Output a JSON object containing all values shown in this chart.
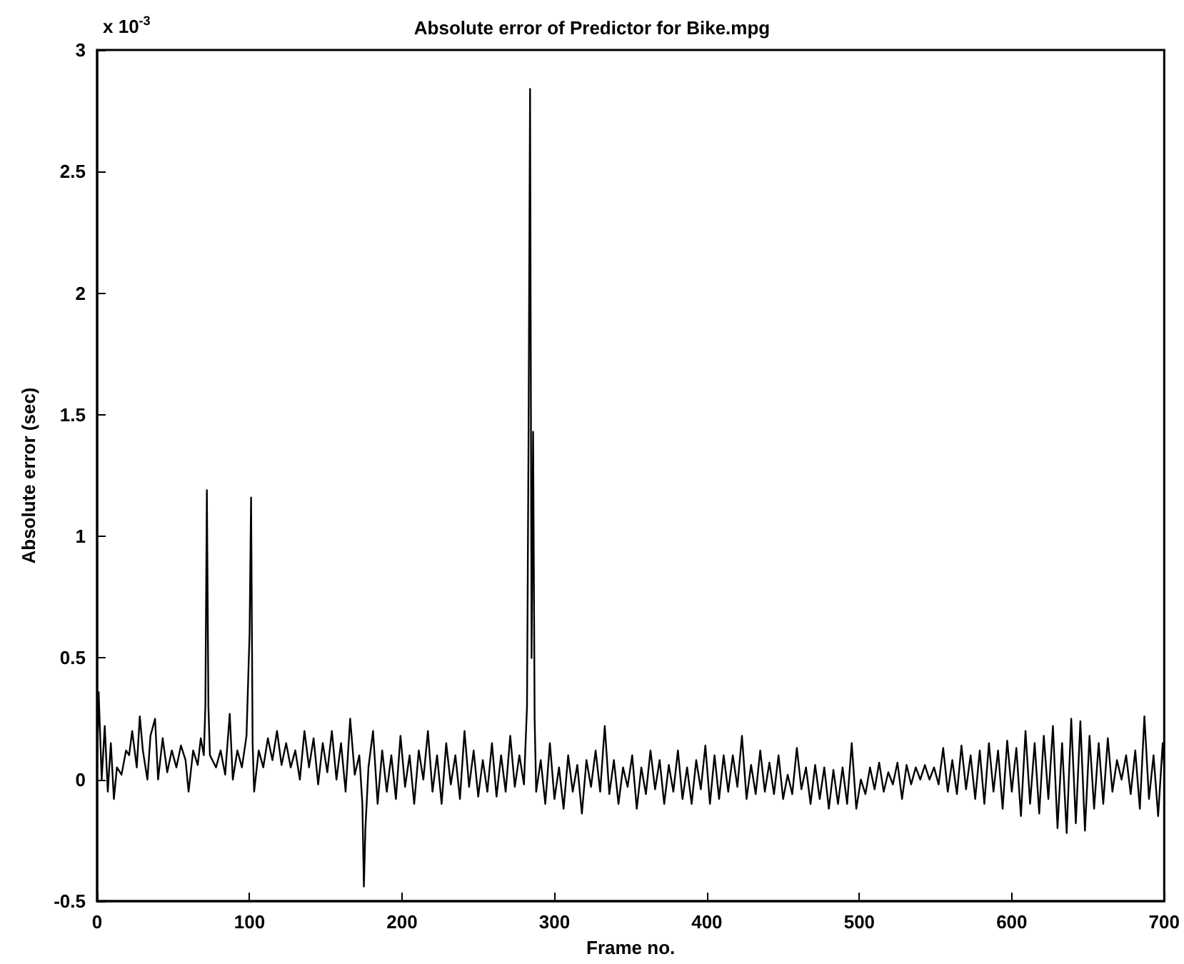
{
  "chart_data": {
    "type": "line",
    "title": "Absolute error of Predictor for Bike.mpg",
    "xlabel": "Frame no.",
    "ylabel": "Absolute error (sec)",
    "annotations": [
      "x 10$^{-3}$"
    ],
    "xlim": [
      0,
      700
    ],
    "xticks": [
      0,
      100,
      200,
      300,
      400,
      500,
      600,
      700
    ],
    "ylim": [
      -0.5,
      3
    ],
    "yticks": [
      -0.5,
      0,
      0.5,
      1,
      1.5,
      2,
      2.5,
      3
    ],
    "marker": "none",
    "line_style": "solid",
    "x": [
      0,
      1,
      3,
      5,
      7,
      9,
      11,
      13,
      16,
      19,
      21,
      23,
      26,
      28,
      30,
      33,
      35,
      38,
      40,
      43,
      46,
      49,
      52,
      55,
      58,
      60,
      63,
      66,
      68,
      70,
      71,
      72,
      73,
      74,
      78,
      81,
      84,
      87,
      89,
      92,
      95,
      98,
      100,
      101,
      102,
      103,
      106,
      109,
      112,
      115,
      118,
      121,
      124,
      127,
      130,
      133,
      136,
      139,
      142,
      145,
      148,
      151,
      154,
      157,
      160,
      163,
      166,
      169,
      172,
      174,
      175,
      176,
      178,
      181,
      184,
      187,
      190,
      193,
      196,
      199,
      202,
      205,
      208,
      211,
      214,
      217,
      220,
      223,
      226,
      229,
      232,
      235,
      238,
      241,
      244,
      247,
      250,
      253,
      256,
      259,
      262,
      265,
      268,
      271,
      274,
      277,
      280,
      282,
      283,
      284,
      285,
      286,
      287,
      288,
      291,
      294,
      297,
      300,
      303,
      306,
      309,
      312,
      315,
      318,
      321,
      324,
      327,
      330,
      333,
      336,
      339,
      342,
      345,
      348,
      351,
      354,
      357,
      360,
      363,
      366,
      369,
      372,
      375,
      378,
      381,
      384,
      387,
      390,
      393,
      396,
      399,
      402,
      405,
      408,
      411,
      414,
      417,
      420,
      423,
      426,
      429,
      432,
      435,
      438,
      441,
      444,
      447,
      450,
      453,
      456,
      459,
      462,
      465,
      468,
      471,
      474,
      477,
      480,
      483,
      486,
      489,
      492,
      495,
      498,
      501,
      504,
      507,
      510,
      513,
      516,
      519,
      522,
      525,
      528,
      531,
      534,
      537,
      540,
      543,
      546,
      549,
      552,
      555,
      558,
      561,
      564,
      567,
      570,
      573,
      576,
      579,
      582,
      585,
      588,
      591,
      594,
      597,
      600,
      603,
      606,
      609,
      612,
      615,
      618,
      621,
      624,
      627,
      630,
      633,
      636,
      639,
      642,
      645,
      648,
      651,
      654,
      657,
      660,
      663,
      666,
      669,
      672,
      675,
      678,
      681,
      684,
      687,
      690,
      693,
      696,
      699,
      700
    ],
    "series": [
      {
        "color": "#000000",
        "values": [
          0.05,
          0.36,
          0.0,
          0.22,
          -0.05,
          0.15,
          -0.08,
          0.05,
          0.02,
          0.12,
          0.1,
          0.2,
          0.05,
          0.26,
          0.12,
          0.0,
          0.18,
          0.25,
          0.0,
          0.17,
          0.03,
          0.12,
          0.05,
          0.14,
          0.08,
          -0.05,
          0.12,
          0.06,
          0.17,
          0.1,
          0.3,
          1.19,
          0.3,
          0.1,
          0.05,
          0.12,
          0.02,
          0.27,
          0.0,
          0.12,
          0.05,
          0.18,
          0.6,
          1.16,
          0.15,
          -0.05,
          0.12,
          0.05,
          0.17,
          0.08,
          0.2,
          0.06,
          0.15,
          0.05,
          0.12,
          0.0,
          0.2,
          0.05,
          0.17,
          -0.02,
          0.15,
          0.03,
          0.2,
          0.0,
          0.15,
          -0.05,
          0.25,
          0.02,
          0.1,
          -0.1,
          -0.44,
          -0.2,
          0.05,
          0.2,
          -0.1,
          0.12,
          -0.05,
          0.1,
          -0.08,
          0.18,
          -0.03,
          0.1,
          -0.1,
          0.12,
          0.0,
          0.2,
          -0.05,
          0.1,
          -0.1,
          0.15,
          -0.02,
          0.1,
          -0.08,
          0.2,
          -0.03,
          0.12,
          -0.07,
          0.08,
          -0.05,
          0.15,
          -0.07,
          0.1,
          -0.05,
          0.18,
          -0.03,
          0.1,
          -0.02,
          0.3,
          1.4,
          2.84,
          0.5,
          1.43,
          0.25,
          -0.05,
          0.08,
          -0.1,
          0.15,
          -0.08,
          0.05,
          -0.12,
          0.1,
          -0.05,
          0.06,
          -0.14,
          0.08,
          -0.03,
          0.12,
          -0.05,
          0.22,
          -0.06,
          0.08,
          -0.1,
          0.05,
          -0.03,
          0.1,
          -0.12,
          0.05,
          -0.06,
          0.12,
          -0.04,
          0.08,
          -0.1,
          0.06,
          -0.05,
          0.12,
          -0.08,
          0.05,
          -0.1,
          0.08,
          -0.04,
          0.14,
          -0.1,
          0.1,
          -0.08,
          0.1,
          -0.05,
          0.1,
          -0.03,
          0.18,
          -0.08,
          0.06,
          -0.06,
          0.12,
          -0.05,
          0.07,
          -0.06,
          0.1,
          -0.08,
          0.02,
          -0.06,
          0.13,
          -0.04,
          0.05,
          -0.1,
          0.06,
          -0.08,
          0.05,
          -0.12,
          0.04,
          -0.1,
          0.05,
          -0.1,
          0.15,
          -0.12,
          0.0,
          -0.06,
          0.05,
          -0.04,
          0.07,
          -0.05,
          0.03,
          -0.02,
          0.07,
          -0.08,
          0.06,
          -0.02,
          0.05,
          0.0,
          0.06,
          0.0,
          0.05,
          -0.02,
          0.13,
          -0.05,
          0.08,
          -0.06,
          0.14,
          -0.04,
          0.1,
          -0.08,
          0.12,
          -0.1,
          0.15,
          -0.05,
          0.12,
          -0.12,
          0.16,
          -0.05,
          0.13,
          -0.15,
          0.2,
          -0.1,
          0.15,
          -0.14,
          0.18,
          -0.08,
          0.22,
          -0.2,
          0.15,
          -0.22,
          0.25,
          -0.18,
          0.24,
          -0.21,
          0.18,
          -0.12,
          0.15,
          -0.1,
          0.17,
          -0.05,
          0.08,
          0.0,
          0.1,
          -0.06,
          0.12,
          -0.12,
          0.26,
          -0.08,
          0.1,
          -0.15,
          0.15,
          0.05
        ]
      }
    ]
  }
}
